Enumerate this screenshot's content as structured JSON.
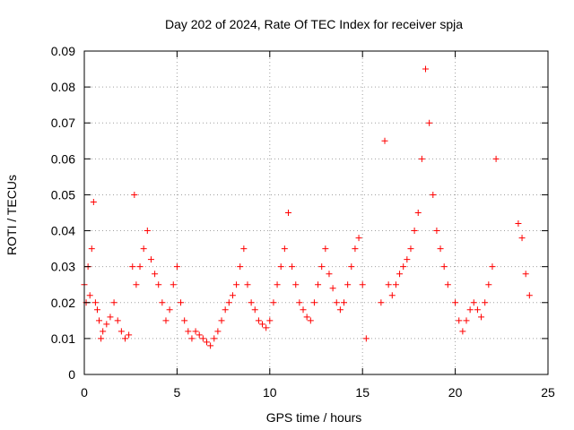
{
  "chart_data": {
    "type": "scatter",
    "title": "Day 202 of 2024, Rate Of TEC Index for receiver spja",
    "xlabel": "GPS time / hours",
    "ylabel": "ROTI / TECUs",
    "xlim": [
      0,
      25
    ],
    "ylim": [
      0,
      0.09
    ],
    "xticks": [
      "0",
      "5",
      "10",
      "15",
      "20",
      "25"
    ],
    "yticks": [
      "0",
      "0.01",
      "0.02",
      "0.03",
      "0.04",
      "0.05",
      "0.06",
      "0.07",
      "0.08",
      "0.09"
    ],
    "grid": true,
    "marker": "+",
    "color": "#ff0000",
    "series": [
      {
        "x": [
          0.0,
          0.1,
          0.2,
          0.3,
          0.4,
          0.5,
          0.6,
          0.7,
          0.8,
          0.9,
          1.0,
          1.2,
          1.4,
          1.6,
          1.8,
          2.0,
          2.2,
          2.4,
          2.6,
          2.7,
          2.8,
          3.0,
          3.2,
          3.4,
          3.6,
          3.8,
          4.0,
          4.2,
          4.4,
          4.6,
          4.8,
          5.0,
          5.2,
          5.4,
          5.6,
          5.8,
          6.0,
          6.2,
          6.4,
          6.6,
          6.8,
          7.0,
          7.2,
          7.4,
          7.6,
          7.8,
          8.0,
          8.2,
          8.4,
          8.6,
          8.8,
          9.0,
          9.2,
          9.4,
          9.6,
          9.8,
          10.0,
          10.2,
          10.4,
          10.6,
          10.8,
          11.0,
          11.2,
          11.4,
          11.6,
          11.8,
          12.0,
          12.2,
          12.4,
          12.6,
          12.8,
          13.0,
          13.2,
          13.4,
          13.6,
          13.8,
          14.0,
          14.2,
          14.4,
          14.6,
          14.8,
          15.0,
          15.2,
          16.0,
          16.2,
          16.4,
          16.6,
          16.8,
          17.0,
          17.2,
          17.4,
          17.6,
          17.8,
          18.0,
          18.2,
          18.4,
          18.6,
          18.8,
          19.0,
          19.2,
          19.4,
          19.6,
          20.0,
          20.2,
          20.4,
          20.6,
          20.8,
          21.0,
          21.2,
          21.4,
          21.6,
          21.8,
          22.0,
          22.2,
          23.4,
          23.6,
          23.8,
          24.0
        ],
        "y": [
          0.025,
          0.02,
          0.03,
          0.022,
          0.035,
          0.048,
          0.02,
          0.018,
          0.015,
          0.01,
          0.012,
          0.014,
          0.016,
          0.02,
          0.015,
          0.012,
          0.01,
          0.011,
          0.03,
          0.05,
          0.025,
          0.03,
          0.035,
          0.04,
          0.032,
          0.028,
          0.025,
          0.02,
          0.015,
          0.018,
          0.025,
          0.03,
          0.02,
          0.015,
          0.012,
          0.01,
          0.012,
          0.011,
          0.01,
          0.009,
          0.008,
          0.01,
          0.012,
          0.015,
          0.018,
          0.02,
          0.022,
          0.025,
          0.03,
          0.035,
          0.025,
          0.02,
          0.018,
          0.015,
          0.014,
          0.013,
          0.015,
          0.02,
          0.025,
          0.03,
          0.035,
          0.045,
          0.03,
          0.025,
          0.02,
          0.018,
          0.016,
          0.015,
          0.02,
          0.025,
          0.03,
          0.035,
          0.028,
          0.024,
          0.02,
          0.018,
          0.02,
          0.025,
          0.03,
          0.035,
          0.038,
          0.025,
          0.01,
          0.02,
          0.065,
          0.025,
          0.022,
          0.025,
          0.028,
          0.03,
          0.032,
          0.035,
          0.04,
          0.045,
          0.06,
          0.085,
          0.07,
          0.05,
          0.04,
          0.035,
          0.03,
          0.025,
          0.02,
          0.015,
          0.012,
          0.015,
          0.018,
          0.02,
          0.018,
          0.016,
          0.02,
          0.025,
          0.03,
          0.06,
          0.042,
          0.038,
          0.028,
          0.022
        ]
      }
    ]
  }
}
